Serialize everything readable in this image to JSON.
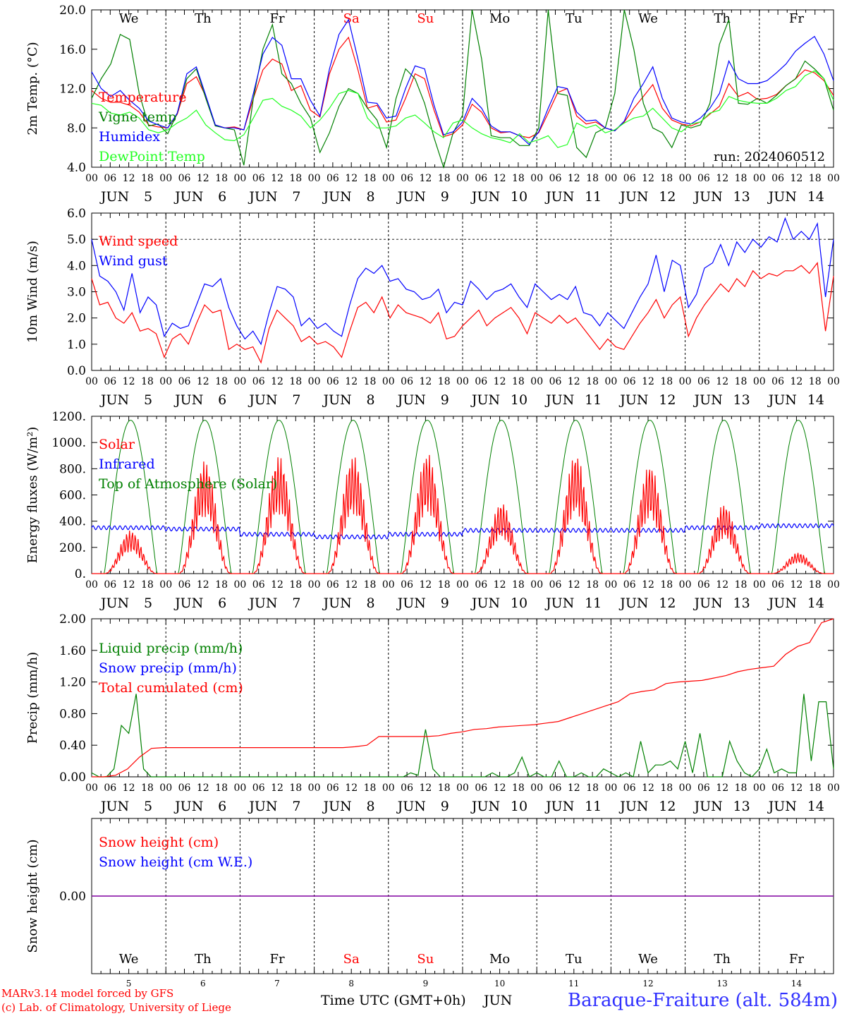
{
  "chart_data": [
    {
      "type": "line",
      "panel": "temperature",
      "ylabel": "2m Temp. (°C)",
      "ylim": [
        4.0,
        20.0
      ],
      "yticks": [
        "4.0",
        "8.0",
        "12.0",
        "16.0",
        "20.0"
      ],
      "ytick_values": [
        4,
        8,
        12,
        16,
        20
      ],
      "annotation": "run: 2024060512",
      "legend_placement": "top-left",
      "series": [
        {
          "name": "Temperature",
          "color": "#ff0000",
          "values": [
            11.8,
            11.0,
            10.6,
            10.6,
            10.3,
            9.6,
            8.3,
            8.1,
            8.0,
            9.4,
            12.5,
            13.2,
            11.2,
            8.3,
            8.0,
            8.1,
            7.8,
            11.0,
            13.9,
            15.0,
            14.5,
            11.8,
            12.3,
            9.8,
            9.1,
            13.5,
            16.0,
            17.2,
            13.9,
            10.0,
            10.3,
            8.6,
            8.8,
            11.0,
            13.5,
            13.0,
            9.8,
            7.1,
            7.4,
            8.3,
            10.4,
            9.6,
            8.0,
            7.5,
            7.6,
            7.2,
            7.0,
            7.5,
            9.5,
            11.6,
            12.0,
            9.2,
            8.4,
            8.6,
            8.0,
            7.7,
            8.6,
            10.0,
            11.2,
            12.4,
            10.0,
            8.8,
            8.4,
            8.2,
            8.6,
            9.4,
            10.2,
            12.5,
            11.2,
            11.6,
            10.9,
            11.0,
            11.4,
            12.3,
            13.0,
            13.9,
            13.6,
            12.8,
            11.3
          ]
        },
        {
          "name": "Vigne temp",
          "color": "#008000",
          "values": [
            11.0,
            13.0,
            14.5,
            17.5,
            17.0,
            11.5,
            8.2,
            8.4,
            7.4,
            9.5,
            13.0,
            14.0,
            11.0,
            8.2,
            8.0,
            7.8,
            4.2,
            11.0,
            16.0,
            18.5,
            13.5,
            12.5,
            10.5,
            9.0,
            5.5,
            7.5,
            10.2,
            12.0,
            11.5,
            10.0,
            8.8,
            6.0,
            11.0,
            14.0,
            13.0,
            10.5,
            7.0,
            4.0,
            7.5,
            9.3,
            20.0,
            15.0,
            7.2,
            7.0,
            7.0,
            6.2,
            6.2,
            8.0,
            20.0,
            11.5,
            11.3,
            6.0,
            5.0,
            7.5,
            8.0,
            11.5,
            20.0,
            16.0,
            10.5,
            8.0,
            7.5,
            6.0,
            8.3,
            8.0,
            8.3,
            10.5,
            16.5,
            19.0,
            10.5,
            10.4,
            11.0,
            10.5,
            11.3,
            12.3,
            13.0,
            14.8,
            14.0,
            13.0,
            9.8
          ]
        },
        {
          "name": "Humidex",
          "color": "#0000ff",
          "values": [
            13.7,
            12.0,
            11.2,
            11.8,
            10.8,
            10.0,
            8.7,
            8.3,
            8.0,
            9.5,
            13.5,
            14.2,
            11.3,
            8.3,
            8.0,
            8.0,
            7.8,
            11.5,
            15.5,
            17.2,
            16.4,
            13.0,
            13.0,
            10.8,
            9.2,
            14.0,
            17.5,
            19.0,
            15.0,
            10.6,
            10.5,
            9.0,
            9.2,
            12.0,
            14.3,
            14.0,
            10.3,
            7.3,
            7.6,
            8.6,
            11.0,
            10.0,
            8.2,
            7.6,
            7.6,
            7.2,
            6.3,
            7.6,
            10.0,
            12.2,
            12.0,
            9.6,
            8.7,
            8.8,
            8.0,
            7.7,
            8.7,
            11.0,
            12.5,
            14.2,
            11.0,
            9.0,
            8.6,
            8.4,
            9.0,
            10.0,
            11.5,
            14.8,
            13.0,
            12.5,
            12.5,
            12.8,
            13.6,
            14.5,
            15.8,
            16.6,
            17.3,
            15.5,
            12.8
          ]
        },
        {
          "name": "DewPoint Temp",
          "color": "#22ff22",
          "values": [
            10.5,
            10.3,
            9.5,
            9.3,
            9.6,
            9.0,
            7.8,
            7.5,
            7.8,
            8.5,
            9.0,
            9.8,
            8.3,
            7.5,
            6.8,
            6.7,
            7.3,
            9.0,
            10.8,
            11.0,
            10.2,
            9.8,
            9.2,
            8.0,
            8.8,
            10.0,
            11.5,
            11.8,
            11.5,
            9.0,
            8.0,
            8.0,
            8.2,
            9.0,
            9.3,
            8.5,
            7.6,
            7.0,
            8.5,
            8.8,
            8.0,
            7.4,
            7.0,
            6.8,
            6.5,
            7.4,
            6.5,
            6.8,
            7.2,
            6.0,
            6.3,
            8.5,
            8.0,
            8.3,
            7.5,
            7.8,
            8.5,
            9.0,
            9.2,
            10.0,
            9.0,
            8.0,
            7.6,
            8.4,
            8.6,
            9.5,
            9.8,
            11.2,
            10.8,
            10.6,
            10.5,
            10.5,
            11.0,
            11.8,
            12.2,
            13.3,
            13.8,
            13.0,
            10.8
          ]
        }
      ]
    },
    {
      "type": "line",
      "panel": "wind",
      "ylabel": "10m Wind (m/s)",
      "ylim": [
        0.0,
        6.0
      ],
      "yticks": [
        "0.0",
        "1.0",
        "2.0",
        "3.0",
        "4.0",
        "5.0",
        "6.0"
      ],
      "ytick_values": [
        0,
        1,
        2,
        3,
        4,
        5,
        6
      ],
      "reference_line": 5.0,
      "legend_placement": "top-left",
      "series": [
        {
          "name": "Wind speed",
          "color": "#ff0000",
          "values": [
            3.5,
            2.5,
            2.6,
            2.0,
            1.8,
            2.2,
            1.5,
            1.6,
            1.4,
            0.5,
            1.2,
            1.4,
            1.0,
            1.8,
            2.5,
            2.2,
            2.3,
            0.8,
            1.0,
            0.8,
            0.9,
            0.3,
            1.6,
            2.3,
            2.0,
            1.7,
            1.1,
            1.3,
            1.0,
            1.1,
            0.9,
            0.5,
            1.5,
            2.4,
            2.6,
            2.2,
            2.8,
            2.0,
            2.5,
            2.2,
            2.1,
            2.0,
            1.8,
            2.2,
            1.2,
            1.3,
            1.7,
            2.0,
            2.3,
            1.7,
            2.0,
            2.2,
            2.4,
            2.0,
            1.4,
            2.2,
            2.0,
            1.8,
            2.1,
            1.8,
            2.0,
            1.6,
            1.2,
            0.8,
            1.2,
            0.9,
            0.8,
            1.3,
            1.8,
            2.2,
            2.7,
            2.0,
            2.5,
            2.8,
            1.3,
            2.0,
            2.5,
            2.9,
            3.3,
            3.0,
            3.5,
            3.2,
            3.8,
            3.5,
            3.7,
            3.6,
            3.8,
            3.8,
            4.0,
            3.7,
            4.1,
            1.5,
            3.6
          ]
        },
        {
          "name": "Wind gust",
          "color": "#0000ff",
          "values": [
            5.0,
            3.6,
            3.4,
            3.0,
            2.3,
            3.7,
            2.2,
            2.8,
            2.5,
            1.3,
            1.8,
            1.6,
            1.7,
            2.5,
            3.3,
            3.2,
            3.5,
            2.4,
            1.7,
            1.2,
            1.5,
            1.0,
            2.2,
            3.2,
            3.1,
            2.8,
            1.7,
            2.0,
            1.6,
            1.8,
            1.5,
            1.3,
            2.5,
            3.5,
            3.9,
            3.7,
            4.0,
            3.4,
            3.5,
            3.1,
            3.0,
            2.7,
            2.8,
            3.1,
            2.2,
            2.6,
            2.5,
            3.4,
            3.1,
            2.7,
            3.0,
            3.1,
            3.3,
            2.8,
            2.4,
            3.3,
            3.0,
            2.7,
            2.9,
            2.7,
            3.2,
            2.2,
            2.1,
            1.7,
            2.2,
            1.9,
            1.6,
            2.2,
            2.8,
            3.3,
            4.4,
            3.0,
            4.2,
            4.0,
            2.4,
            2.9,
            3.9,
            4.1,
            4.8,
            4.0,
            4.9,
            4.5,
            5.0,
            4.7,
            5.1,
            4.9,
            5.8,
            5.0,
            5.3,
            5.0,
            5.6,
            2.8,
            5.0
          ]
        }
      ]
    },
    {
      "type": "line",
      "panel": "energy",
      "ylabel": "Energy fluxes (W/m²)",
      "ylim": [
        0,
        1200
      ],
      "yticks": [
        "0.",
        "200.",
        "400.",
        "600.",
        "800.",
        "1000.",
        "1200."
      ],
      "ytick_values": [
        0,
        200,
        400,
        600,
        800,
        1000,
        1200
      ],
      "legend_placement": "top-left",
      "daily_peaks": {
        "Solar": [
          330,
          860,
          900,
          900,
          920,
          540,
          910,
          830,
          530,
          160
        ],
        "Infrared": [
          350,
          340,
          300,
          280,
          300,
          330,
          330,
          330,
          350,
          365
        ],
        "Top of Atmosphere (Solar)": [
          1170,
          1170,
          1170,
          1170,
          1170,
          1170,
          1170,
          1170,
          1170,
          1170
        ]
      },
      "series": [
        {
          "name": "Solar",
          "color": "#ff0000"
        },
        {
          "name": "Infrared",
          "color": "#0000ff"
        },
        {
          "name": "Top of Atmosphere (Solar)",
          "color": "#008000"
        }
      ]
    },
    {
      "type": "line",
      "panel": "precip",
      "ylabel": "Precip (mm/h)",
      "ylim": [
        0.0,
        2.0
      ],
      "yticks": [
        "0.00",
        "0.40",
        "0.80",
        "1.20",
        "1.60",
        "2.00"
      ],
      "ytick_values": [
        0,
        0.4,
        0.8,
        1.2,
        1.6,
        2.0
      ],
      "legend_placement": "top-left",
      "series": [
        {
          "name": "Liquid precip (mm/h)",
          "color": "#008000",
          "values": [
            0.05,
            0.0,
            0.0,
            0.1,
            0.65,
            0.55,
            1.05,
            0.1,
            0.0,
            0.0,
            0.0,
            0.0,
            0.0,
            0.0,
            0.0,
            0.0,
            0.0,
            0.0,
            0.0,
            0.0,
            0.0,
            0.0,
            0.0,
            0.0,
            0.0,
            0.0,
            0.0,
            0.0,
            0.0,
            0.0,
            0.0,
            0.0,
            0.0,
            0.0,
            0.0,
            0.0,
            0.0,
            0.0,
            0.0,
            0.0,
            0.0,
            0.0,
            0.0,
            0.05,
            0.02,
            0.6,
            0.1,
            0.0,
            0.0,
            0.0,
            0.0,
            0.0,
            0.0,
            0.0,
            0.05,
            0.0,
            0.0,
            0.05,
            0.25,
            0.0,
            0.05,
            0.0,
            0.0,
            0.2,
            0.0,
            0.0,
            0.05,
            0.0,
            0.0,
            0.1,
            0.05,
            0.0,
            0.05,
            0.0,
            0.45,
            0.05,
            0.15,
            0.15,
            0.2,
            0.1,
            0.45,
            0.05,
            0.55,
            0.0,
            0.0,
            0.0,
            0.45,
            0.2,
            0.05,
            0.0,
            0.1,
            0.35,
            0.05,
            0.1,
            0.05,
            0.05,
            1.05,
            0.2,
            0.95,
            0.95,
            0.1
          ]
        },
        {
          "name": "Snow precip (mm/h)",
          "color": "#0000ff",
          "values": []
        },
        {
          "name": "Total cumulated (cm)",
          "color": "#ff0000",
          "values": [
            0.0,
            0.0,
            0.02,
            0.1,
            0.25,
            0.36,
            0.37,
            0.37,
            0.37,
            0.37,
            0.37,
            0.37,
            0.37,
            0.37,
            0.37,
            0.37,
            0.37,
            0.37,
            0.37,
            0.37,
            0.37,
            0.37,
            0.38,
            0.4,
            0.51,
            0.51,
            0.51,
            0.51,
            0.51,
            0.52,
            0.55,
            0.57,
            0.6,
            0.61,
            0.63,
            0.64,
            0.65,
            0.66,
            0.68,
            0.7,
            0.75,
            0.8,
            0.85,
            0.9,
            0.95,
            1.05,
            1.08,
            1.1,
            1.18,
            1.2,
            1.21,
            1.22,
            1.25,
            1.28,
            1.33,
            1.36,
            1.38,
            1.4,
            1.55,
            1.65,
            1.7,
            1.95,
            2.0
          ]
        }
      ]
    },
    {
      "type": "line",
      "panel": "snow",
      "ylabel": "Snow height (cm)",
      "yticks": [
        "0.00"
      ],
      "ytick_values": [
        0
      ],
      "legend_placement": "top-left",
      "series": [
        {
          "name": "Snow height (cm)",
          "color": "#ff0000",
          "values": [
            0,
            0
          ]
        },
        {
          "name": "Snow height (cm W.E.)",
          "color": "#0000ff",
          "values": [
            0,
            0
          ]
        }
      ]
    }
  ],
  "xaxis": {
    "hour_ticks": [
      "00",
      "06",
      "12",
      "18"
    ],
    "final_tick": "00",
    "month": "JUN",
    "days": [
      "5",
      "6",
      "7",
      "8",
      "9",
      "10",
      "11",
      "12",
      "13",
      "14"
    ],
    "weekdays": [
      "We",
      "Th",
      "Fr",
      "Sa",
      "Su",
      "Mo",
      "Tu",
      "We",
      "Th",
      "Fr"
    ],
    "weekend_color": "#ff0000",
    "weekday_color": "#000000",
    "weekend_flags": [
      false,
      false,
      false,
      true,
      true,
      false,
      false,
      false,
      false,
      false
    ]
  },
  "footer": {
    "model_line": "MARv3.14 model forced by GFS",
    "credit_line": "(c) Lab. of Climatology, University of Liege",
    "axis_title": "Time UTC (GMT+0h)",
    "month_label": "JUN",
    "station": "Baraque-Fraiture (alt. 584m)"
  }
}
